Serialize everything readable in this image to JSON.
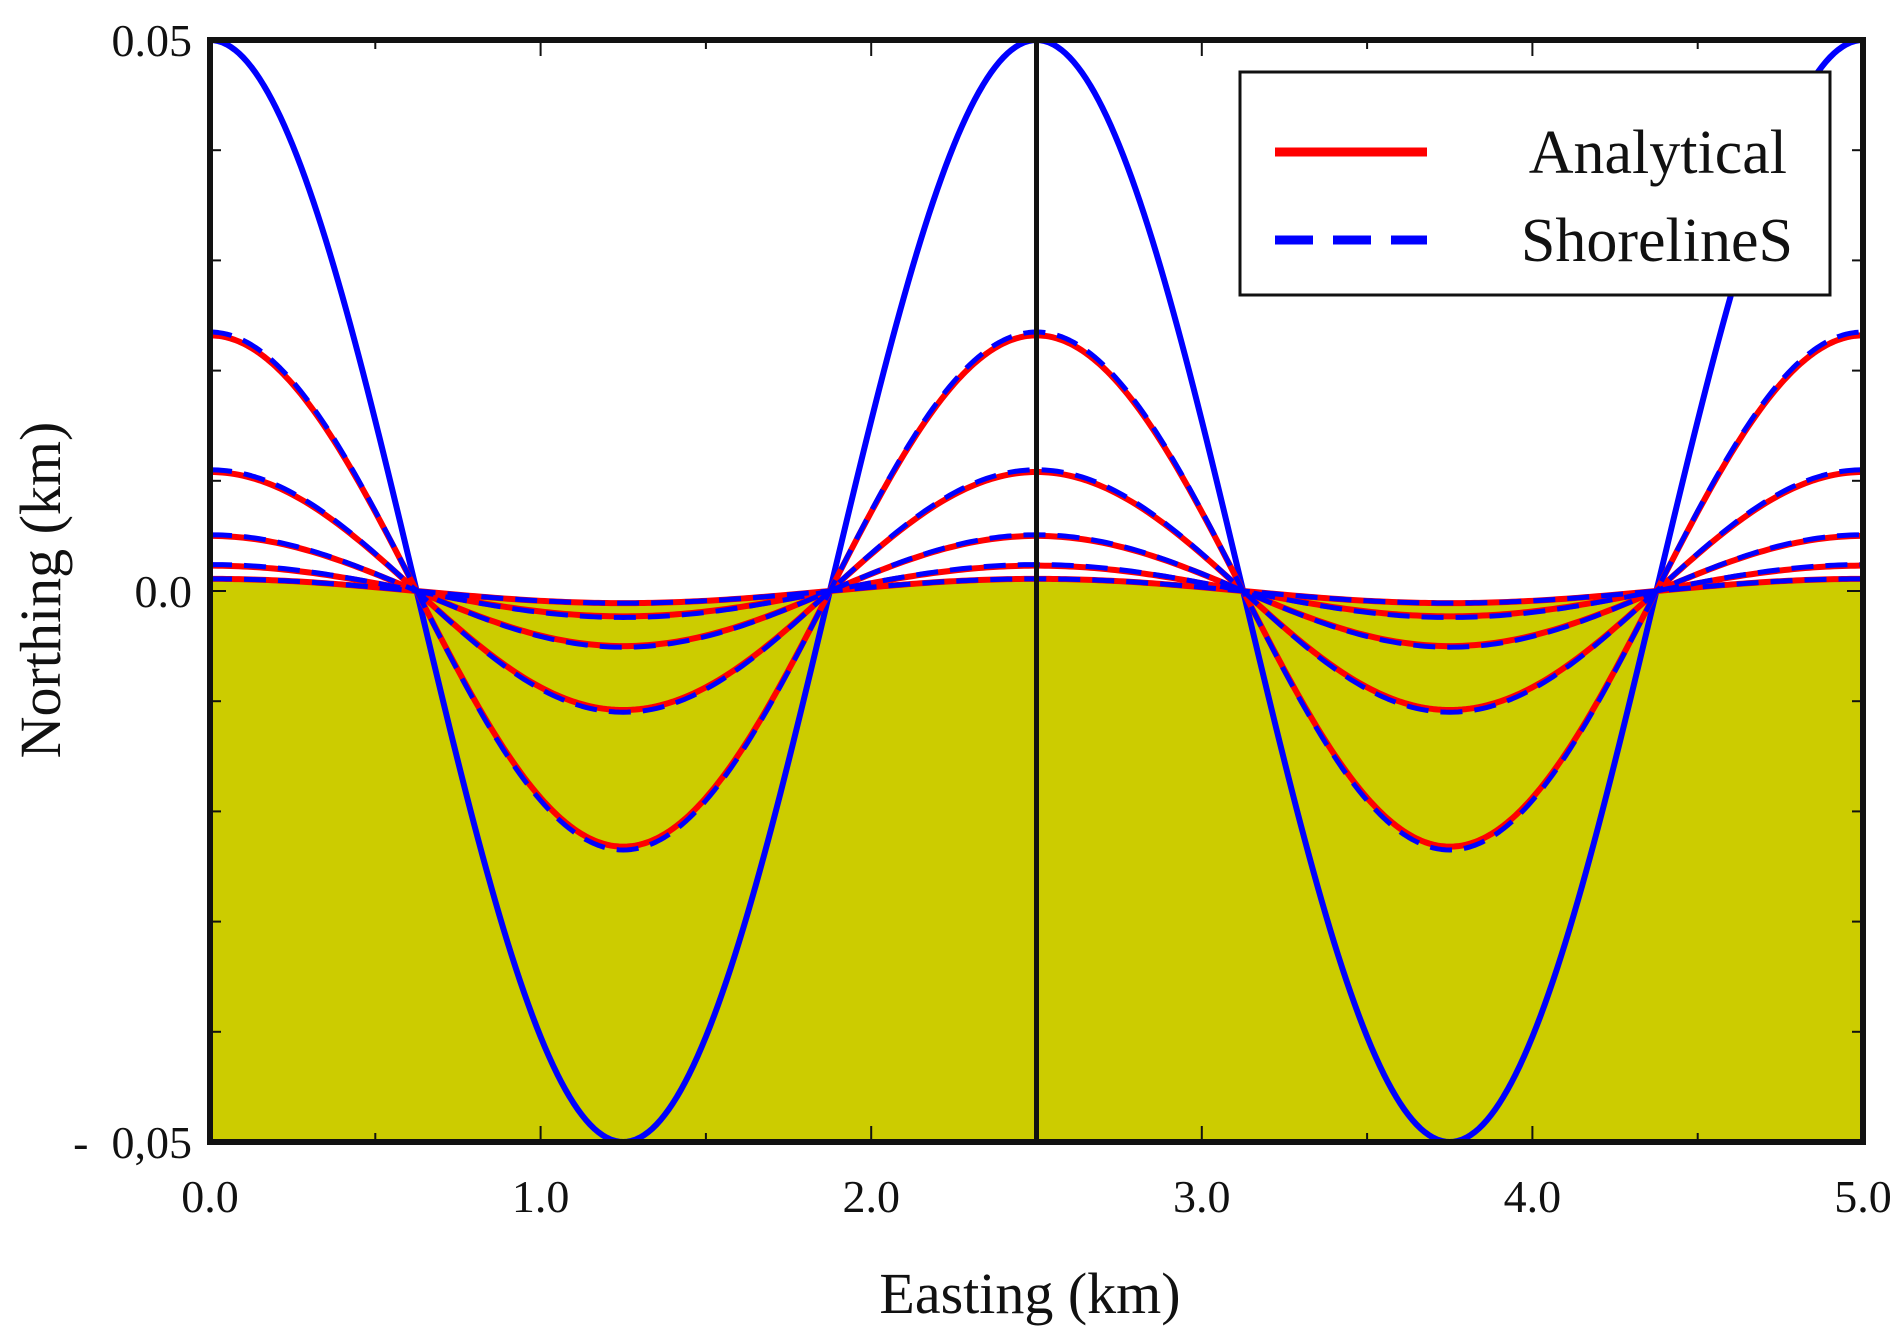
{
  "chart_data": {
    "type": "line",
    "title": "",
    "xlabel": "Easting (km)",
    "ylabel": "Northing (km)",
    "xlim": [
      0.0,
      5.0
    ],
    "ylim": [
      -0.05,
      0.05
    ],
    "x_ticks": [
      {
        "value": 0.0,
        "label": "0.0"
      },
      {
        "value": 1.0,
        "label": "1.0"
      },
      {
        "value": 2.0,
        "label": "2.0"
      },
      {
        "value": 3.0,
        "label": "3.0"
      },
      {
        "value": 4.0,
        "label": "4.0"
      },
      {
        "value": 5.0,
        "label": "5.0"
      }
    ],
    "x_minor_ticks": [
      0.5,
      1.5,
      2.5,
      3.5,
      4.5
    ],
    "y_ticks": [
      {
        "value": 0.05,
        "label": "0.05"
      },
      {
        "value": 0.0,
        "label": "0.0"
      },
      {
        "value": -0.05,
        "label": "-  0,05"
      }
    ],
    "y_minor_ticks": [
      0.04,
      0.03,
      0.02,
      0.01,
      -0.01,
      -0.02,
      -0.03,
      -0.04
    ],
    "grid": false,
    "legend": {
      "position": "top-right",
      "entries": [
        {
          "label": "Analytical",
          "color": "#ff0000",
          "style": "solid"
        },
        {
          "label": "ShorelineS",
          "color": "#0000ff",
          "style": "dashed"
        }
      ]
    },
    "profile": "cosine",
    "wavelength_km": 2.5,
    "land_fill": {
      "color": "#cccc00",
      "below_curve": "smallest amplitude"
    },
    "vertical_reference_x": 2.5,
    "colors": {
      "analytical": "#ff0000",
      "shoreline_s": "#0000ff",
      "land": "#cccc00",
      "axes": "#111111"
    },
    "series": [
      {
        "group": "Initial",
        "style": "solid",
        "color": "#0000ff",
        "amplitude": 0.05
      },
      {
        "group": "Analytical",
        "style": "solid",
        "color": "#ff0000",
        "amplitude": 0.0232
      },
      {
        "group": "Analytical",
        "style": "solid",
        "color": "#ff0000",
        "amplitude": 0.0108
      },
      {
        "group": "Analytical",
        "style": "solid",
        "color": "#ff0000",
        "amplitude": 0.005
      },
      {
        "group": "Analytical",
        "style": "solid",
        "color": "#ff0000",
        "amplitude": 0.0023
      },
      {
        "group": "Analytical",
        "style": "solid",
        "color": "#ff0000",
        "amplitude": 0.0011
      },
      {
        "group": "ShorelineS",
        "style": "dashed",
        "color": "#0000ff",
        "amplitude": 0.0235
      },
      {
        "group": "ShorelineS",
        "style": "dashed",
        "color": "#0000ff",
        "amplitude": 0.011
      },
      {
        "group": "ShorelineS",
        "style": "dashed",
        "color": "#0000ff",
        "amplitude": 0.0051
      },
      {
        "group": "ShorelineS",
        "style": "dashed",
        "color": "#0000ff",
        "amplitude": 0.0024
      },
      {
        "group": "ShorelineS",
        "style": "dashed",
        "color": "#0000ff",
        "amplitude": 0.0011
      }
    ]
  }
}
